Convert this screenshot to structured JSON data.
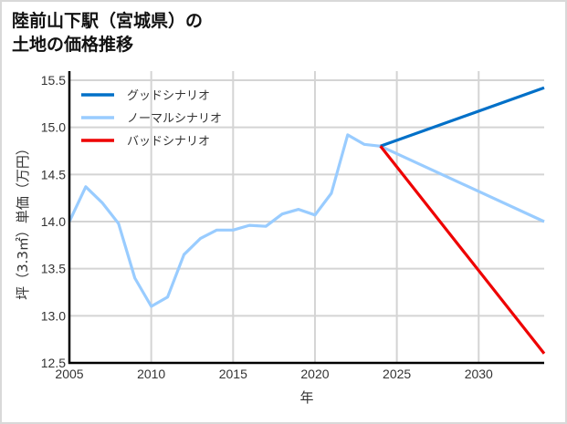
{
  "title": {
    "line1": "陸前山下駅（宮城県）の",
    "line2": "土地の価格推移"
  },
  "chart_data": {
    "type": "line",
    "title": "陸前山下駅（宮城県）の土地の価格推移",
    "xlabel": "年",
    "ylabel": "坪（3.3㎡）単価（万円）",
    "xlim": [
      2005,
      2034
    ],
    "ylim": [
      12.5,
      15.5
    ],
    "x_ticks": [
      2005,
      2010,
      2015,
      2020,
      2025,
      2030
    ],
    "y_ticks": [
      12.5,
      13.0,
      13.5,
      14.0,
      14.5,
      15.0,
      15.5
    ],
    "y_tick_labels": [
      "12.5",
      "13.0",
      "13.5",
      "14.0",
      "14.5",
      "15.0",
      "15.5"
    ],
    "grid": true,
    "legend_position": "upper-left",
    "series": [
      {
        "name": "グッドシナリオ",
        "color": "#0070c8",
        "x": [
          2024,
          2034
        ],
        "values": [
          14.8,
          15.42
        ]
      },
      {
        "name": "ノーマルシナリオ",
        "color": "#99ccff",
        "x": [
          2005,
          2006,
          2007,
          2008,
          2009,
          2010,
          2011,
          2012,
          2013,
          2014,
          2015,
          2016,
          2017,
          2018,
          2019,
          2020,
          2021,
          2022,
          2023,
          2024,
          2034
        ],
        "values": [
          14.0,
          14.37,
          14.2,
          13.98,
          13.4,
          13.1,
          13.2,
          13.65,
          13.82,
          13.91,
          13.91,
          13.96,
          13.95,
          14.08,
          14.13,
          14.07,
          14.3,
          14.92,
          14.82,
          14.8,
          14.0
        ]
      },
      {
        "name": "バッドシナリオ",
        "color": "#ee0000",
        "x": [
          2024,
          2034
        ],
        "values": [
          14.8,
          12.6
        ]
      }
    ]
  },
  "legend": {
    "items": [
      {
        "label": "グッドシナリオ",
        "color": "#0070c8"
      },
      {
        "label": "ノーマルシナリオ",
        "color": "#99ccff"
      },
      {
        "label": "バッドシナリオ",
        "color": "#ee0000"
      }
    ]
  }
}
